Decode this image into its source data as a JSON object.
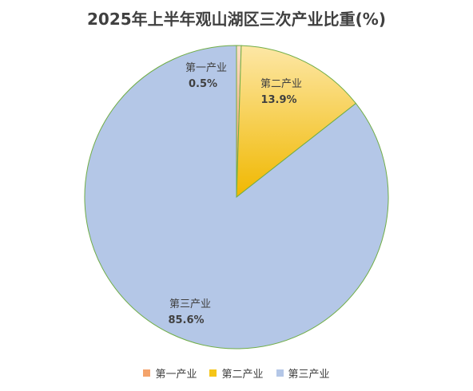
{
  "chart_data": {
    "type": "pie",
    "title": "2025年上半年观山湖区三次产业比重(%)",
    "slices": [
      {
        "label": "第一产业",
        "value": 0.5,
        "value_label": "0.5%",
        "color": "#f4a36b"
      },
      {
        "label": "第二产业",
        "value": 13.9,
        "value_label": "13.9%",
        "color": "#f5c518"
      },
      {
        "label": "第三产业",
        "value": 85.6,
        "value_label": "85.6%",
        "color": "#b4c7e7"
      }
    ],
    "legend_position": "bottom"
  }
}
